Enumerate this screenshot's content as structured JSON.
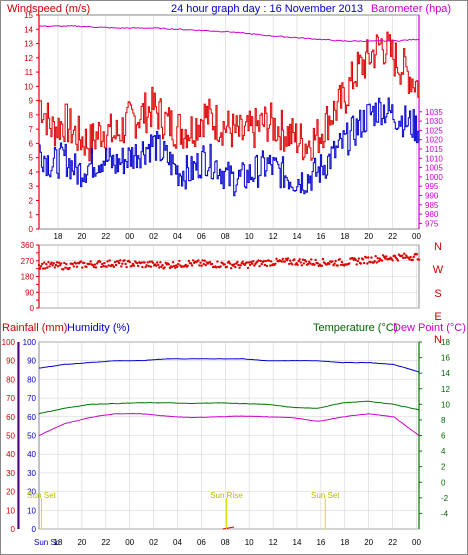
{
  "header": {
    "left_label": "Windspeed (m/s)",
    "title": "24 hour graph day : 16 November 2013",
    "right_label": "Barometer (hpa)"
  },
  "lower_header": {
    "rainfall_label": "Rainfall (mm)",
    "humidity_label": "Humidity (%)",
    "temperature_label": "Temperature (°C)",
    "dewpoint_label": "Dew Point (°C)"
  },
  "compass": [
    "N",
    "W",
    "S",
    "E",
    "N"
  ],
  "markers": [
    {
      "label": "Sun Set",
      "hour": 0.2
    },
    {
      "label": "Sun Rise",
      "hour": 14.8
    },
    {
      "label": "Sun Set",
      "hour": 22.6
    }
  ],
  "x_axis": {
    "ticks": [
      "18",
      "20",
      "22",
      "00",
      "02",
      "04",
      "06",
      "08",
      "10",
      "12",
      "14",
      "16",
      "18",
      "20",
      "22",
      "00"
    ],
    "lower_first_label": "Sun Sc",
    "lower_ticks": [
      "18",
      "20",
      "22",
      "00",
      "02",
      "04",
      "06",
      "08",
      "10",
      "12",
      "14",
      "16",
      "18",
      "20",
      "22",
      "00"
    ]
  },
  "colors": {
    "red": "#dd0000",
    "blue": "#0000cc",
    "magenta": "#cc00cc",
    "green": "#007700",
    "label_red": "#cc0000",
    "label_blue": "#0000cc",
    "label_green": "#006600",
    "marker": "#dddd00",
    "grid": "#cccccc"
  },
  "chart_data": [
    {
      "type": "line",
      "name": "wind-barometer",
      "x_range_hours": [
        0,
        30
      ],
      "wind_ylim": [
        0,
        15
      ],
      "wind_yticks": [
        0,
        1,
        2,
        3,
        4,
        5,
        6,
        7,
        8,
        9,
        10,
        11,
        12,
        13,
        14,
        15
      ],
      "baro_ylim": [
        972,
        1087
      ],
      "baro_yticks": [
        975,
        980,
        985,
        990,
        995,
        1000,
        1005,
        1010,
        1015,
        1020,
        1025,
        1030,
        1035
      ],
      "gust_samples": [
        {
          "x": 0,
          "y": 9
        },
        {
          "x": 1,
          "y": 7
        },
        {
          "x": 2,
          "y": 7.5
        },
        {
          "x": 3,
          "y": 6.5
        },
        {
          "x": 4,
          "y": 6
        },
        {
          "x": 5,
          "y": 7
        },
        {
          "x": 6,
          "y": 6.5
        },
        {
          "x": 7,
          "y": 7.5
        },
        {
          "x": 8,
          "y": 8
        },
        {
          "x": 9,
          "y": 8.5
        },
        {
          "x": 10,
          "y": 7.5
        },
        {
          "x": 11,
          "y": 7
        },
        {
          "x": 12,
          "y": 7
        },
        {
          "x": 13,
          "y": 8
        },
        {
          "x": 14,
          "y": 7.5
        },
        {
          "x": 15,
          "y": 7
        },
        {
          "x": 16,
          "y": 6.5
        },
        {
          "x": 17,
          "y": 7
        },
        {
          "x": 18,
          "y": 7.5
        },
        {
          "x": 19,
          "y": 7
        },
        {
          "x": 20,
          "y": 6.5
        },
        {
          "x": 21,
          "y": 6
        },
        {
          "x": 22,
          "y": 6.5
        },
        {
          "x": 23,
          "y": 8
        },
        {
          "x": 24,
          "y": 9
        },
        {
          "x": 25,
          "y": 11
        },
        {
          "x": 26,
          "y": 12
        },
        {
          "x": 27,
          "y": 13
        },
        {
          "x": 28,
          "y": 12
        },
        {
          "x": 29,
          "y": 11
        },
        {
          "x": 30,
          "y": 10
        }
      ],
      "average_samples": [
        {
          "x": 0,
          "y": 5.5
        },
        {
          "x": 1,
          "y": 4.5
        },
        {
          "x": 2,
          "y": 5
        },
        {
          "x": 3,
          "y": 4
        },
        {
          "x": 4,
          "y": 4.5
        },
        {
          "x": 5,
          "y": 5
        },
        {
          "x": 6,
          "y": 4.5
        },
        {
          "x": 7,
          "y": 5
        },
        {
          "x": 8,
          "y": 5.5
        },
        {
          "x": 9,
          "y": 6
        },
        {
          "x": 10,
          "y": 5
        },
        {
          "x": 11,
          "y": 4
        },
        {
          "x": 12,
          "y": 4
        },
        {
          "x": 13,
          "y": 5
        },
        {
          "x": 14,
          "y": 4.5
        },
        {
          "x": 15,
          "y": 3.5
        },
        {
          "x": 16,
          "y": 3.5
        },
        {
          "x": 17,
          "y": 4
        },
        {
          "x": 18,
          "y": 4.5
        },
        {
          "x": 19,
          "y": 4
        },
        {
          "x": 20,
          "y": 3.5
        },
        {
          "x": 21,
          "y": 3.5
        },
        {
          "x": 22,
          "y": 4
        },
        {
          "x": 23,
          "y": 5
        },
        {
          "x": 24,
          "y": 6
        },
        {
          "x": 25,
          "y": 7
        },
        {
          "x": 26,
          "y": 8
        },
        {
          "x": 27,
          "y": 8.5
        },
        {
          "x": 28,
          "y": 8
        },
        {
          "x": 29,
          "y": 7.5
        },
        {
          "x": 30,
          "y": 7
        }
      ],
      "barometer_samples": [
        {
          "x": 0,
          "y": 1081
        },
        {
          "x": 3,
          "y": 1081
        },
        {
          "x": 6,
          "y": 1080
        },
        {
          "x": 9,
          "y": 1080
        },
        {
          "x": 12,
          "y": 1079
        },
        {
          "x": 15,
          "y": 1078
        },
        {
          "x": 18,
          "y": 1076
        },
        {
          "x": 20,
          "y": 1075
        },
        {
          "x": 22,
          "y": 1074
        },
        {
          "x": 24,
          "y": 1073
        },
        {
          "x": 26,
          "y": 1073
        },
        {
          "x": 28,
          "y": 1073
        },
        {
          "x": 30,
          "y": 1074
        }
      ]
    },
    {
      "type": "scatter",
      "name": "wind-direction",
      "x_range_hours": [
        0,
        30
      ],
      "ylim": [
        0,
        360
      ],
      "yticks": [
        0,
        45,
        90,
        135,
        180,
        225,
        270,
        315,
        360
      ],
      "samples": [
        {
          "x": 0,
          "y": 245
        },
        {
          "x": 2,
          "y": 240
        },
        {
          "x": 4,
          "y": 250
        },
        {
          "x": 6,
          "y": 255
        },
        {
          "x": 8,
          "y": 250
        },
        {
          "x": 10,
          "y": 245
        },
        {
          "x": 12,
          "y": 255
        },
        {
          "x": 14,
          "y": 250
        },
        {
          "x": 16,
          "y": 245
        },
        {
          "x": 18,
          "y": 260
        },
        {
          "x": 20,
          "y": 265
        },
        {
          "x": 22,
          "y": 260
        },
        {
          "x": 24,
          "y": 260
        },
        {
          "x": 26,
          "y": 275
        },
        {
          "x": 28,
          "y": 290
        },
        {
          "x": 30,
          "y": 295
        }
      ]
    },
    {
      "type": "line",
      "name": "rain-humidity-temperature",
      "x_range_hours": [
        0,
        30
      ],
      "rain_ylim": [
        0,
        100
      ],
      "rain_yticks": [
        0,
        10,
        20,
        30,
        40,
        50,
        60,
        70,
        80,
        90,
        100
      ],
      "humidity_ylim": [
        0,
        100
      ],
      "humidity_yticks": [
        0,
        10,
        20,
        30,
        40,
        50,
        60,
        70,
        80,
        90,
        100
      ],
      "temp_ylim": [
        -6,
        18
      ],
      "temp_yticks": [
        -4,
        -2,
        0,
        2,
        4,
        6,
        8,
        10,
        12,
        14,
        16,
        18
      ],
      "humidity_samples": [
        {
          "x": 0,
          "y": 86
        },
        {
          "x": 2,
          "y": 88
        },
        {
          "x": 4,
          "y": 89
        },
        {
          "x": 6,
          "y": 90
        },
        {
          "x": 8,
          "y": 90
        },
        {
          "x": 10,
          "y": 91
        },
        {
          "x": 12,
          "y": 91
        },
        {
          "x": 14,
          "y": 91
        },
        {
          "x": 16,
          "y": 91
        },
        {
          "x": 18,
          "y": 90
        },
        {
          "x": 20,
          "y": 90
        },
        {
          "x": 22,
          "y": 90
        },
        {
          "x": 24,
          "y": 89
        },
        {
          "x": 26,
          "y": 89
        },
        {
          "x": 28,
          "y": 88
        },
        {
          "x": 30,
          "y": 84
        }
      ],
      "temperature_samples": [
        {
          "x": 0,
          "y": 8.8
        },
        {
          "x": 2,
          "y": 9.5
        },
        {
          "x": 4,
          "y": 10
        },
        {
          "x": 6,
          "y": 10.1
        },
        {
          "x": 8,
          "y": 10.2
        },
        {
          "x": 10,
          "y": 10.2
        },
        {
          "x": 12,
          "y": 10.1
        },
        {
          "x": 14,
          "y": 10.2
        },
        {
          "x": 16,
          "y": 10.1
        },
        {
          "x": 18,
          "y": 10
        },
        {
          "x": 20,
          "y": 9.6
        },
        {
          "x": 22,
          "y": 9.5
        },
        {
          "x": 24,
          "y": 10.2
        },
        {
          "x": 26,
          "y": 10.4
        },
        {
          "x": 28,
          "y": 10
        },
        {
          "x": 30,
          "y": 9.3
        }
      ],
      "dewpoint_samples": [
        {
          "x": 0,
          "y": 6
        },
        {
          "x": 2,
          "y": 7.5
        },
        {
          "x": 4,
          "y": 8.3
        },
        {
          "x": 6,
          "y": 8.8
        },
        {
          "x": 8,
          "y": 8.8
        },
        {
          "x": 10,
          "y": 8.5
        },
        {
          "x": 12,
          "y": 8.3
        },
        {
          "x": 14,
          "y": 8.4
        },
        {
          "x": 16,
          "y": 8.5
        },
        {
          "x": 18,
          "y": 8.4
        },
        {
          "x": 20,
          "y": 8.3
        },
        {
          "x": 22,
          "y": 7.8
        },
        {
          "x": 24,
          "y": 8.4
        },
        {
          "x": 26,
          "y": 8.8
        },
        {
          "x": 28,
          "y": 8.4
        },
        {
          "x": 30,
          "y": 6
        }
      ]
    }
  ]
}
